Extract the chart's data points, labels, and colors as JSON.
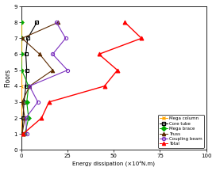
{
  "floors": [
    1,
    2,
    3,
    4,
    5,
    6,
    7,
    8
  ],
  "mega_column": [
    0.3,
    0.3,
    0.3,
    0.3,
    0.3,
    0.3,
    0.3,
    0.3
  ],
  "core_tube": [
    0.5,
    1.0,
    1.5,
    2.5,
    3.0,
    2.5,
    3.5,
    8.5
  ],
  "mega_brace": [
    2.0,
    4.0,
    3.0,
    4.0,
    0.3,
    0.0,
    0.0,
    0.0
  ],
  "truss": [
    0.5,
    2.0,
    0.5,
    4.5,
    17.0,
    10.0,
    0.5,
    20.0
  ],
  "coupling_beam": [
    3.0,
    2.5,
    9.0,
    4.5,
    25.0,
    17.0,
    24.0,
    19.0
  ],
  "total": [
    1.0,
    11.0,
    15.0,
    45.0,
    52.0,
    42.0,
    65.0,
    56.0
  ],
  "ylabel": "Floors",
  "xlabel": "Energy dissipation (×10⁴N.m)",
  "xlim": [
    0,
    100
  ],
  "ylim": [
    0,
    9
  ],
  "yticks": [
    0,
    1,
    2,
    3,
    4,
    5,
    6,
    7,
    8,
    9
  ],
  "xticks": [
    0,
    25,
    50,
    75,
    100
  ],
  "colors": {
    "mega_column": "#FFA500",
    "core_tube": "#000000",
    "mega_brace": "#00AA00",
    "truss": "#5C2A00",
    "coupling_beam": "#7B2FBE",
    "total": "#FF0000"
  },
  "legend_labels": [
    "Mega column",
    "Core tube",
    "Mega brace",
    "Truss",
    "Coupling beam",
    "Total"
  ],
  "figsize": [
    2.72,
    2.16
  ],
  "dpi": 100
}
